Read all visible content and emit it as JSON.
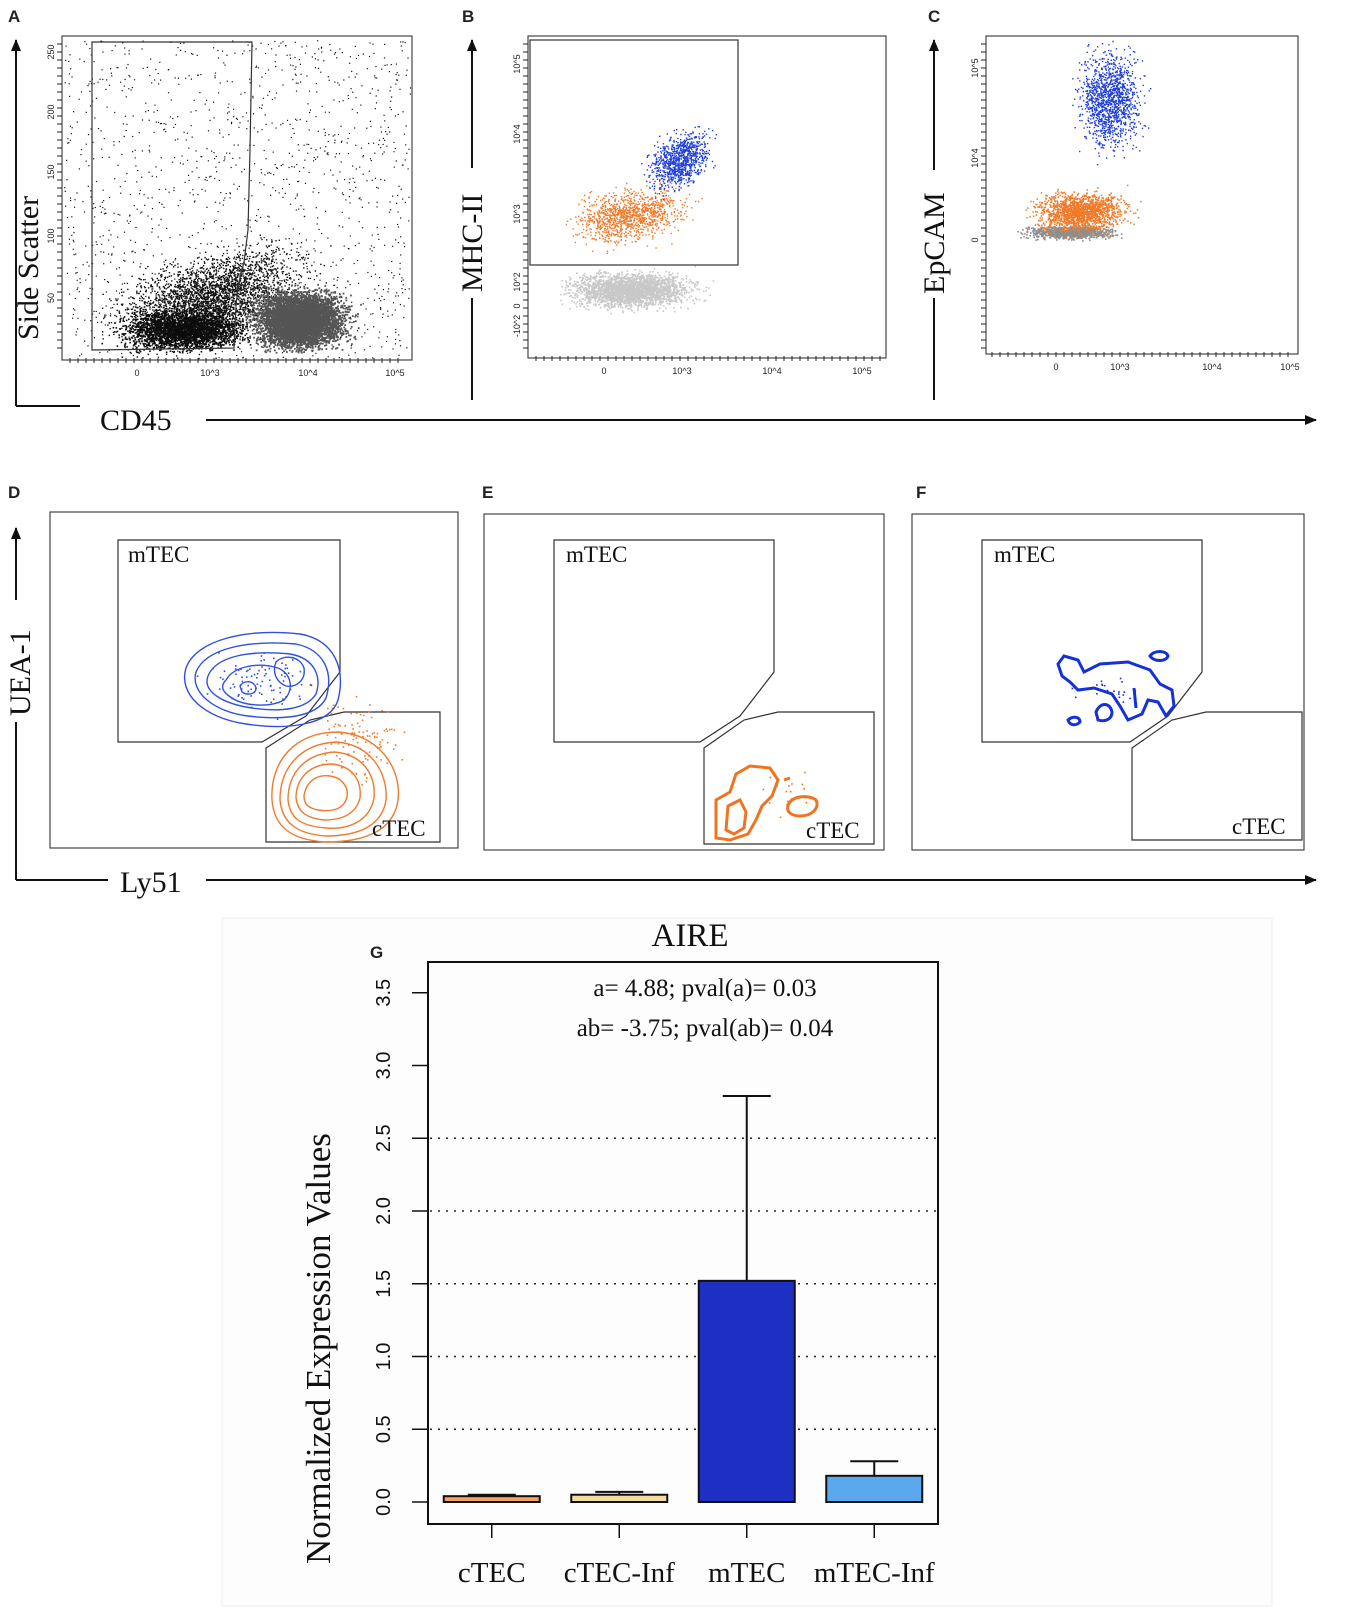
{
  "panels": {
    "A": {
      "label": "A",
      "x_ticks": [
        "0",
        "10^3",
        "10^4",
        "10^5"
      ],
      "y_ticks": [
        "50",
        "100",
        "150",
        "200",
        "250"
      ]
    },
    "B": {
      "label": "B",
      "x_ticks": [
        "0",
        "10^3",
        "10^4",
        "10^5"
      ],
      "y_ticks": [
        "-10^2",
        "0",
        "10^2",
        "10^3",
        "10^4",
        "10^5"
      ]
    },
    "C": {
      "label": "C",
      "x_ticks": [
        "0",
        "10^3",
        "10^4",
        "10^5"
      ],
      "y_ticks": [
        "0",
        "10^4",
        "10^5"
      ]
    },
    "D": {
      "label": "D",
      "gate_top": "mTEC",
      "gate_bottom": "cTEC"
    },
    "E": {
      "label": "E",
      "gate_top": "mTEC",
      "gate_bottom": "cTEC"
    },
    "F": {
      "label": "F",
      "gate_top": "mTEC",
      "gate_bottom": "cTEC"
    },
    "G": {
      "label": "G"
    }
  },
  "axes": {
    "row1_x": "CD45",
    "row1_y": {
      "A": "Side Scatter",
      "B": "MHC-II",
      "C": "EpCAM"
    },
    "row2_x": "Ly51",
    "row2_y": "UEA-1"
  },
  "colors": {
    "blue_events": "#1f3fd6",
    "orange_events": "#f07a2a",
    "gray_events": "#bdbdbd",
    "dark_events": "#222222"
  },
  "chart_data": {
    "type": "bar",
    "title": "AIRE",
    "ylabel": "Normalized Expression Values",
    "xlabel": "",
    "ylim": [
      0,
      3.8
    ],
    "yticks": [
      "0.0",
      "0.5",
      "1.0",
      "1.5",
      "2.0",
      "2.5",
      "3.0",
      "3.5"
    ],
    "grid_values": [
      0.5,
      1.0,
      1.5,
      2.0,
      2.5
    ],
    "categories": [
      "cTEC",
      "cTEC-Inf",
      "mTEC",
      "mTEC-Inf"
    ],
    "values": [
      0.04,
      0.05,
      1.52,
      0.18
    ],
    "error_upper": [
      0.05,
      0.07,
      2.79,
      0.28
    ],
    "bar_colors": [
      "#f4a261",
      "#f2dca0",
      "#1e2fc4",
      "#5aa9ec"
    ],
    "stats_line1": "a=  4.88; pval(a)= 0.03",
    "stats_line2": "ab= -3.75; pval(ab)= 0.04"
  }
}
